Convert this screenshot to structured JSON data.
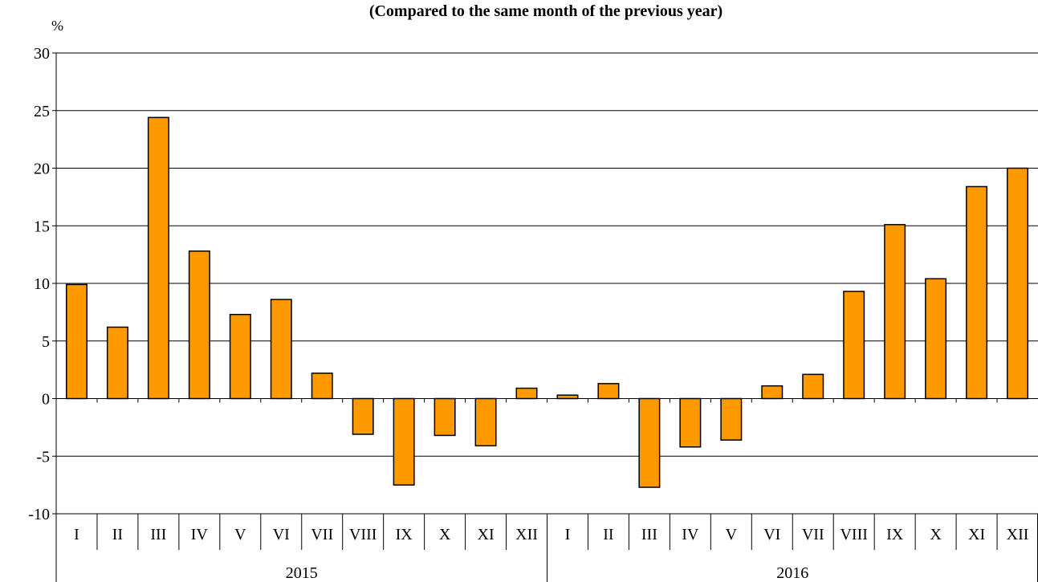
{
  "chart_data": {
    "type": "bar",
    "title": "(Compared to the same month of the previous year)",
    "y_label": "%",
    "color": "#ff9900",
    "ylim": [
      -10,
      30
    ],
    "yticks": [
      -10,
      -5,
      0,
      5,
      10,
      15,
      20,
      25,
      30
    ],
    "grid": true,
    "groups": [
      {
        "label": "2015",
        "categories": [
          "I",
          "II",
          "III",
          "IV",
          "V",
          "VI",
          "VII",
          "VIII",
          "IX",
          "X",
          "XI",
          "XII"
        ],
        "values": [
          9.9,
          6.2,
          24.4,
          12.8,
          7.3,
          8.6,
          2.2,
          -3.1,
          -7.5,
          -3.2,
          -4.1,
          0.9
        ]
      },
      {
        "label": "2016",
        "categories": [
          "I",
          "II",
          "III",
          "IV",
          "V",
          "VI",
          "VII",
          "VIII",
          "IX",
          "X",
          "XI",
          "XII"
        ],
        "values": [
          0.3,
          1.3,
          -7.7,
          -4.2,
          -3.6,
          1.1,
          2.1,
          9.3,
          15.1,
          10.4,
          18.4,
          20.0
        ]
      }
    ]
  }
}
